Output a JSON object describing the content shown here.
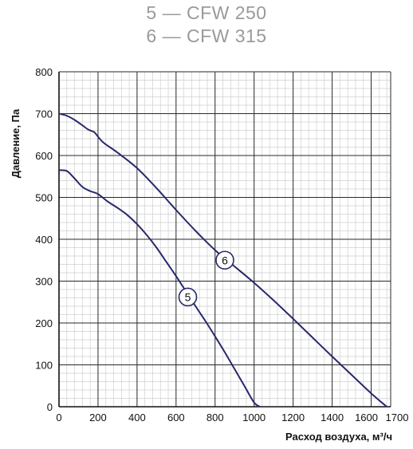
{
  "legend": [
    {
      "id": "5",
      "text": "5 — CFW 250"
    },
    {
      "id": "6",
      "text": "6 — CFW 315"
    }
  ],
  "chart_data": {
    "type": "line",
    "xlabel": "Расход воздуха, м³/ч",
    "ylabel": "Давление, Па",
    "xlim": [
      0,
      1700
    ],
    "ylim": [
      0,
      800
    ],
    "x_ticks": [
      {
        "value": 0,
        "label": "0"
      },
      {
        "value": 200,
        "label": "200"
      },
      {
        "value": 400,
        "label": "400"
      },
      {
        "value": 600,
        "label": "600"
      },
      {
        "value": 800,
        "label": "800"
      },
      {
        "value": 1000,
        "label": "1000"
      },
      {
        "value": 1200,
        "label": "1200"
      },
      {
        "value": 1400,
        "label": "1400"
      },
      {
        "value": 1600,
        "label": "1600"
      },
      {
        "value": 1700,
        "label": "1700"
      }
    ],
    "y_ticks": [
      {
        "value": 0,
        "label": "0"
      },
      {
        "value": 100,
        "label": "100"
      },
      {
        "value": 200,
        "label": "200"
      },
      {
        "value": 300,
        "label": "300"
      },
      {
        "value": 400,
        "label": "400"
      },
      {
        "value": 500,
        "label": "500"
      },
      {
        "value": 600,
        "label": "600"
      },
      {
        "value": 700,
        "label": "700"
      },
      {
        "value": 800,
        "label": "800"
      }
    ],
    "grid": true,
    "minor_grid_step_x": 40,
    "minor_grid_step_y": 20,
    "line_color": "#27296b",
    "series": [
      {
        "name": "5",
        "points": [
          [
            0,
            565
          ],
          [
            40,
            563
          ],
          [
            80,
            545
          ],
          [
            120,
            525
          ],
          [
            160,
            515
          ],
          [
            200,
            508
          ],
          [
            250,
            490
          ],
          [
            300,
            475
          ],
          [
            350,
            458
          ],
          [
            400,
            436
          ],
          [
            450,
            410
          ],
          [
            500,
            380
          ],
          [
            550,
            346
          ],
          [
            600,
            312
          ],
          [
            650,
            276
          ],
          [
            700,
            240
          ],
          [
            750,
            205
          ],
          [
            800,
            168
          ],
          [
            850,
            130
          ],
          [
            900,
            90
          ],
          [
            950,
            50
          ],
          [
            1000,
            10
          ],
          [
            1030,
            0
          ]
        ],
        "label_point": [
          660,
          262
        ]
      },
      {
        "name": "6",
        "points": [
          [
            0,
            700
          ],
          [
            40,
            695
          ],
          [
            80,
            685
          ],
          [
            120,
            672
          ],
          [
            150,
            662
          ],
          [
            180,
            656
          ],
          [
            200,
            645
          ],
          [
            230,
            630
          ],
          [
            300,
            607
          ],
          [
            400,
            570
          ],
          [
            500,
            522
          ],
          [
            600,
            470
          ],
          [
            700,
            420
          ],
          [
            800,
            374
          ],
          [
            900,
            335
          ],
          [
            1000,
            296
          ],
          [
            1100,
            254
          ],
          [
            1200,
            210
          ],
          [
            1300,
            165
          ],
          [
            1400,
            120
          ],
          [
            1500,
            76
          ],
          [
            1600,
            32
          ],
          [
            1680,
            0
          ]
        ],
        "label_point": [
          850,
          350
        ]
      }
    ]
  }
}
